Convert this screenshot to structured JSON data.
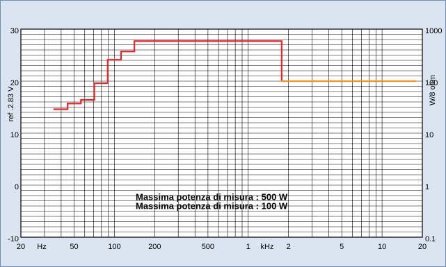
{
  "chart_data": {
    "type": "step",
    "y_label": "ref .2.83 V",
    "y2_label": "W/8 ohm",
    "x_unit_hz": "Hz",
    "x_unit_khz": "kHz",
    "xscale": "log",
    "xlim": [
      20,
      20000
    ],
    "xticks": [
      20,
      50,
      100,
      200,
      500,
      {
        "value": 1000,
        "label": "1"
      },
      {
        "value": 2000,
        "label": "2"
      },
      {
        "value": 5000,
        "label": "5"
      },
      {
        "value": 10000,
        "label": "10"
      },
      {
        "value": 20000,
        "label": "20"
      }
    ],
    "x_minor_grid": [
      30,
      40,
      60,
      70,
      80,
      90,
      300,
      400,
      600,
      700,
      800,
      900,
      3000,
      4000,
      6000,
      7000,
      8000,
      9000
    ],
    "ylim": [
      -10,
      30
    ],
    "yticks": [
      -10,
      0,
      10,
      20,
      30
    ],
    "y_minor_grid": [
      -9,
      -8,
      -7,
      -6,
      -5,
      -4,
      -3,
      -2,
      -1,
      1,
      2,
      3,
      4,
      5,
      6,
      7,
      8,
      9,
      11,
      12,
      13,
      14,
      15,
      16,
      17,
      18,
      19,
      21,
      22,
      23,
      24,
      25,
      26,
      27,
      28,
      29
    ],
    "y2scale": "log",
    "y2lim": [
      0.1,
      1000
    ],
    "y2ticks": [
      0.1,
      1,
      10,
      100,
      1000
    ],
    "grid": true,
    "series": [
      {
        "name": "Massima potenza di misura : 500 W",
        "color": "#e8262a",
        "x": [
          35.5,
          44.7,
          56.2,
          70.8,
          89.1,
          112,
          141,
          1778
        ],
        "values": [
          14.6,
          15.7,
          16.4,
          19.6,
          24.1,
          25.7,
          27.7,
          20
        ]
      },
      {
        "name": "Massima potenza di misura : 100 W",
        "color": "#f7941d",
        "x": [
          1778,
          17800
        ],
        "values": [
          20,
          20
        ]
      }
    ]
  }
}
